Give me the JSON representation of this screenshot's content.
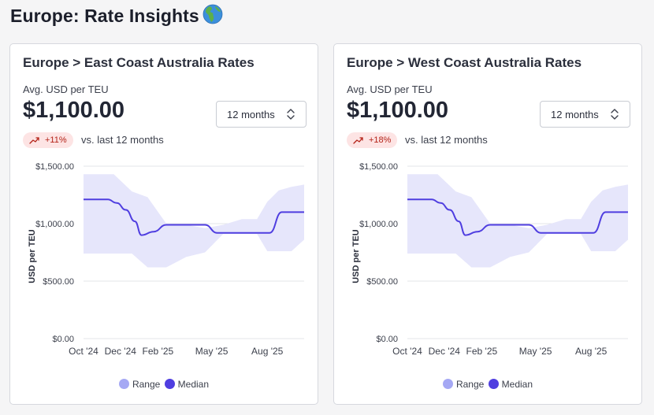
{
  "page": {
    "title": "Europe: Rate Insights",
    "title_icon": "globe-europe-africa-icon"
  },
  "colors": {
    "range": "#e6e6fb",
    "range_legend": "#a5a8f4",
    "median": "#4f3ee0",
    "badge_bg": "#fde4e4",
    "badge_text": "#b42318"
  },
  "cards": [
    {
      "title": "Europe > East Coast Australia Rates",
      "metric_label": "Avg. USD per TEU",
      "metric_value": "$1,100.00",
      "period_selected": "12 months",
      "delta_badge": "+11%",
      "delta_text": "vs. last 12 months"
    },
    {
      "title": "Europe > West Coast Australia Rates",
      "metric_label": "Avg. USD per TEU",
      "metric_value": "$1,100.00",
      "period_selected": "12 months",
      "delta_badge": "+18%",
      "delta_text": "vs. last 12 months"
    }
  ],
  "chart_data": [
    {
      "type": "area",
      "title": "",
      "ylabel": "USD per TEU",
      "xlabel": "",
      "ylim": [
        0,
        1500
      ],
      "y_ticks": [
        "$0.00",
        "$500.00",
        "$1,000.00",
        "$1,500.00"
      ],
      "y_tick_values": [
        0,
        500,
        1000,
        1500
      ],
      "x_ticks": [
        "Oct '24",
        "Dec '24",
        "Feb '25",
        "May '25",
        "Aug '25"
      ],
      "x_tick_values": [
        "2024-10-01",
        "2024-12-01",
        "2025-02-01",
        "2025-05-01",
        "2025-08-01"
      ],
      "x_range": [
        "2024-10-01",
        "2025-10-01"
      ],
      "grid": true,
      "legend_placement": "bottom-center",
      "legend": [
        "Range",
        "Median"
      ],
      "series": [
        {
          "name": "Range",
          "x": [
            "2024-10-01",
            "2024-11-01",
            "2024-11-20",
            "2024-12-20",
            "2025-01-15",
            "2025-02-15",
            "2025-03-20",
            "2025-04-20",
            "2025-05-20",
            "2025-06-20",
            "2025-07-15",
            "2025-08-01",
            "2025-08-20",
            "2025-09-10",
            "2025-10-01"
          ],
          "low": [
            740,
            740,
            740,
            740,
            620,
            620,
            710,
            750,
            910,
            910,
            910,
            760,
            760,
            760,
            860
          ],
          "high": [
            1430,
            1430,
            1430,
            1280,
            1230,
            1000,
            990,
            960,
            990,
            1040,
            1040,
            1190,
            1290,
            1320,
            1340
          ]
        },
        {
          "name": "Median",
          "x": [
            "2024-10-01",
            "2024-11-10",
            "2024-11-25",
            "2024-12-10",
            "2024-12-25",
            "2025-01-05",
            "2025-01-25",
            "2025-02-15",
            "2025-03-15",
            "2025-04-05",
            "2025-04-20",
            "2025-05-10",
            "2025-06-15",
            "2025-07-15",
            "2025-08-05",
            "2025-08-25",
            "2025-09-15",
            "2025-10-01"
          ],
          "values": [
            1210,
            1210,
            1180,
            1120,
            1020,
            900,
            930,
            990,
            990,
            990,
            990,
            920,
            920,
            920,
            920,
            1100,
            1100,
            1100
          ]
        }
      ]
    },
    {
      "type": "area",
      "title": "",
      "ylabel": "USD per TEU",
      "xlabel": "",
      "ylim": [
        0,
        1500
      ],
      "y_ticks": [
        "$0.00",
        "$500.00",
        "$1,000.00",
        "$1,500.00"
      ],
      "y_tick_values": [
        0,
        500,
        1000,
        1500
      ],
      "x_ticks": [
        "Oct '24",
        "Dec '24",
        "Feb '25",
        "May '25",
        "Aug '25"
      ],
      "x_tick_values": [
        "2024-10-01",
        "2024-12-01",
        "2025-02-01",
        "2025-05-01",
        "2025-08-01"
      ],
      "x_range": [
        "2024-10-01",
        "2025-10-01"
      ],
      "grid": true,
      "legend_placement": "bottom-center",
      "legend": [
        "Range",
        "Median"
      ],
      "series": [
        {
          "name": "Range",
          "x": [
            "2024-10-01",
            "2024-11-01",
            "2024-11-20",
            "2024-12-20",
            "2025-01-15",
            "2025-02-15",
            "2025-03-20",
            "2025-04-20",
            "2025-05-20",
            "2025-06-20",
            "2025-07-15",
            "2025-08-01",
            "2025-08-20",
            "2025-09-10",
            "2025-10-01"
          ],
          "low": [
            740,
            740,
            740,
            740,
            620,
            620,
            710,
            750,
            910,
            910,
            910,
            760,
            760,
            760,
            860
          ],
          "high": [
            1430,
            1430,
            1430,
            1280,
            1230,
            1000,
            990,
            960,
            990,
            1040,
            1040,
            1190,
            1290,
            1320,
            1340
          ]
        },
        {
          "name": "Median",
          "x": [
            "2024-10-01",
            "2024-11-10",
            "2024-11-25",
            "2024-12-10",
            "2024-12-25",
            "2025-01-05",
            "2025-01-25",
            "2025-02-15",
            "2025-03-15",
            "2025-04-05",
            "2025-04-20",
            "2025-05-10",
            "2025-06-15",
            "2025-07-15",
            "2025-08-05",
            "2025-08-25",
            "2025-09-15",
            "2025-10-01"
          ],
          "values": [
            1210,
            1210,
            1180,
            1120,
            1020,
            900,
            930,
            990,
            990,
            990,
            990,
            920,
            920,
            920,
            920,
            1100,
            1100,
            1100
          ]
        }
      ]
    }
  ]
}
